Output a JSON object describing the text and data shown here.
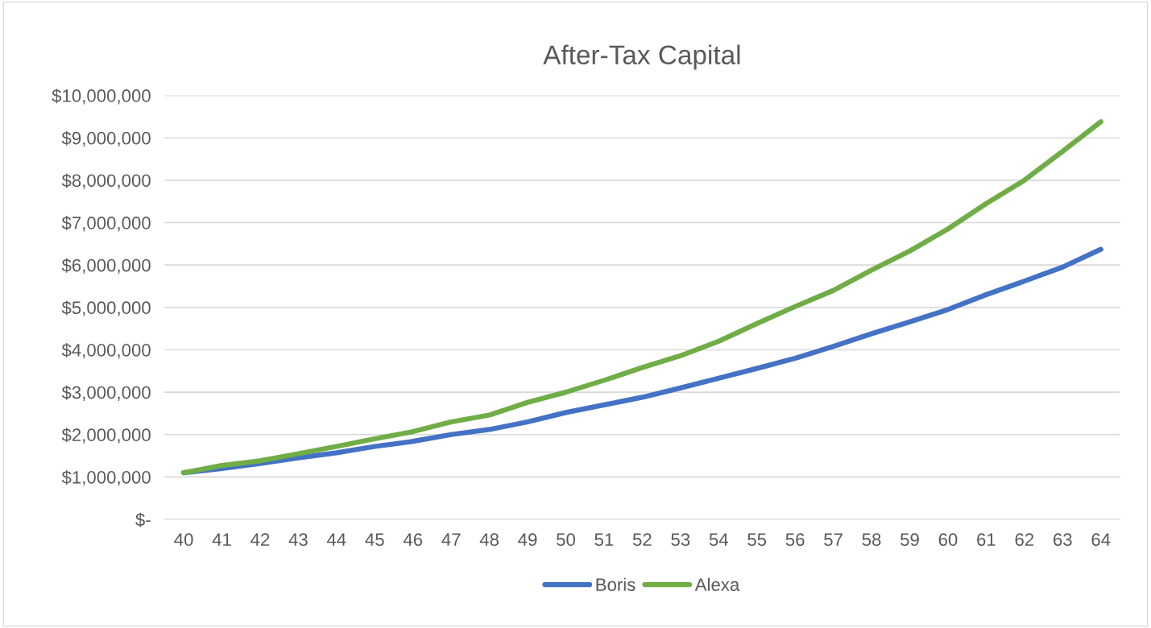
{
  "chart_data": {
    "type": "line",
    "title": "After-Tax Capital",
    "categories": [
      "40",
      "41",
      "42",
      "43",
      "44",
      "45",
      "46",
      "47",
      "48",
      "49",
      "50",
      "51",
      "52",
      "53",
      "54",
      "55",
      "56",
      "57",
      "58",
      "59",
      "60",
      "61",
      "62",
      "63",
      "64"
    ],
    "series": [
      {
        "name": "Boris",
        "color": "#4472c4",
        "values": [
          1100000,
          1200000,
          1320000,
          1450000,
          1570000,
          1720000,
          1840000,
          2000000,
          2120000,
          2300000,
          2520000,
          2700000,
          2880000,
          3100000,
          3330000,
          3560000,
          3800000,
          4080000,
          4380000,
          4660000,
          4950000,
          5300000,
          5620000,
          5950000,
          6370000
        ]
      },
      {
        "name": "Alexa",
        "color": "#70ad47",
        "values": [
          1100000,
          1270000,
          1380000,
          1550000,
          1720000,
          1900000,
          2070000,
          2300000,
          2460000,
          2760000,
          3000000,
          3280000,
          3580000,
          3860000,
          4200000,
          4620000,
          5020000,
          5400000,
          5880000,
          6330000,
          6850000,
          7450000,
          8000000,
          8680000,
          9380000
        ]
      }
    ],
    "ylim": [
      0,
      10000000
    ],
    "yticks": [
      {
        "value": 0,
        "label": "$-"
      },
      {
        "value": 1000000,
        "label": "$1,000,000"
      },
      {
        "value": 2000000,
        "label": "$2,000,000"
      },
      {
        "value": 3000000,
        "label": "$3,000,000"
      },
      {
        "value": 4000000,
        "label": "$4,000,000"
      },
      {
        "value": 5000000,
        "label": "$5,000,000"
      },
      {
        "value": 6000000,
        "label": "$6,000,000"
      },
      {
        "value": 7000000,
        "label": "$7,000,000"
      },
      {
        "value": 8000000,
        "label": "$8,000,000"
      },
      {
        "value": 9000000,
        "label": "$9,000,000"
      },
      {
        "value": 10000000,
        "label": "$10,000,000"
      }
    ],
    "grid": "y",
    "legend": "bottom",
    "marker": "none",
    "line_style": "solid"
  }
}
